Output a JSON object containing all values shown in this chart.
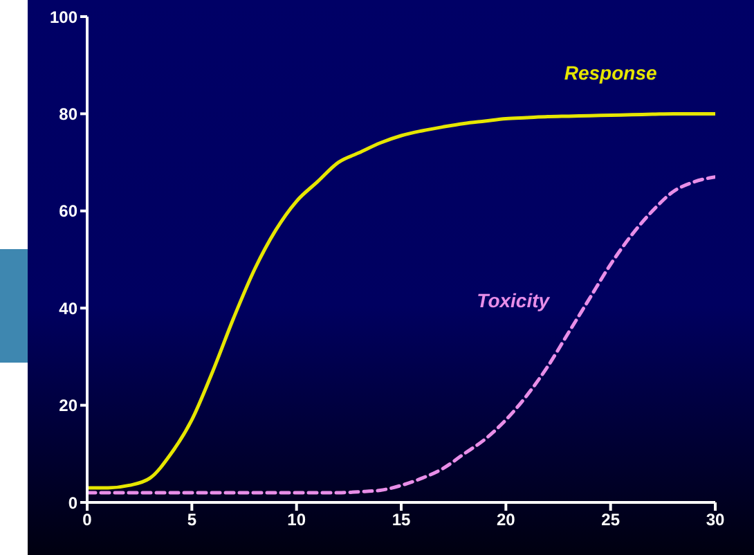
{
  "chart_data": {
    "type": "line",
    "x": [
      0,
      1,
      2,
      3,
      4,
      5,
      6,
      7,
      8,
      9,
      10,
      11,
      12,
      13,
      14,
      15,
      16,
      17,
      18,
      19,
      20,
      21,
      22,
      23,
      24,
      25,
      26,
      27,
      28,
      29,
      30
    ],
    "series": [
      {
        "name": "Response",
        "color": "#e6e600",
        "line_style": "solid",
        "values": [
          3,
          3,
          3.5,
          5,
          10,
          17,
          27,
          38,
          48,
          56,
          62,
          66,
          70,
          72,
          74,
          75.5,
          76.5,
          77.3,
          78,
          78.5,
          79,
          79.2,
          79.4,
          79.5,
          79.6,
          79.7,
          79.8,
          79.9,
          80,
          80,
          80
        ]
      },
      {
        "name": "Toxicity",
        "color": "#e88ee8",
        "line_style": "dashed",
        "values": [
          2,
          2,
          2,
          2,
          2,
          2,
          2,
          2,
          2,
          2,
          2,
          2,
          2,
          2.2,
          2.5,
          3.5,
          5,
          7,
          10,
          13,
          17,
          22,
          28,
          35,
          42,
          49,
          55,
          60,
          64,
          66,
          67
        ]
      }
    ],
    "xlim": [
      0,
      30
    ],
    "xticks": [
      0,
      5,
      10,
      15,
      20,
      25,
      30
    ],
    "ylim": [
      0,
      100
    ],
    "yticks": [
      0,
      20,
      40,
      60,
      80,
      100
    ],
    "grid": false,
    "legend": false,
    "marker": "none"
  }
}
